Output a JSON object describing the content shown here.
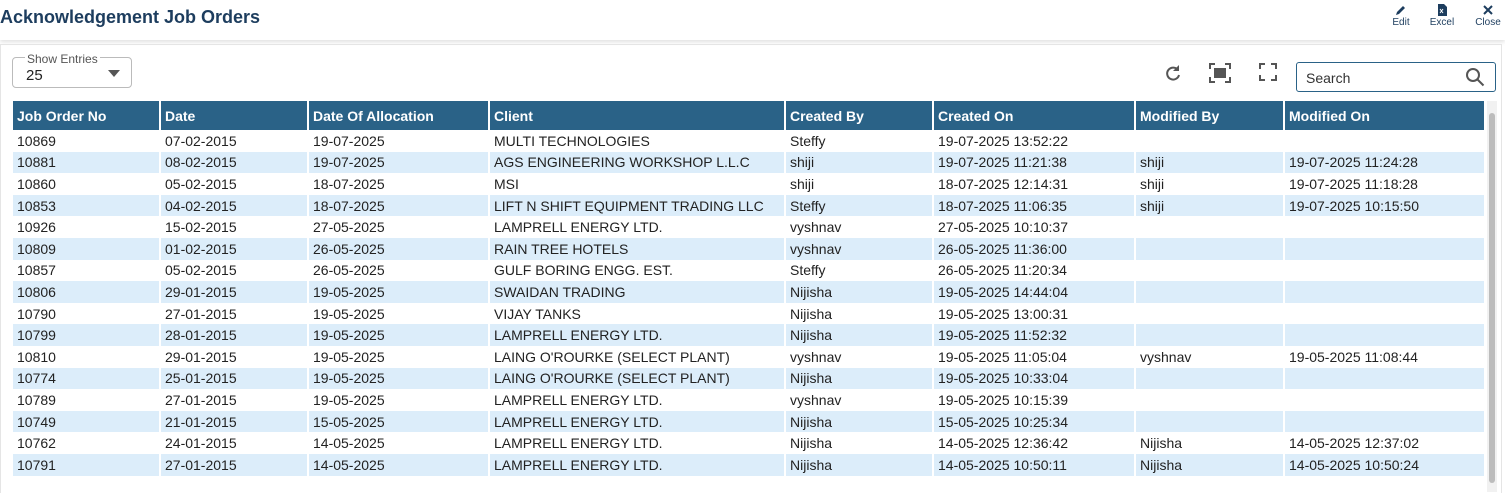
{
  "header": {
    "title": "Acknowledgement Job Orders",
    "actions": [
      "Edit",
      "Excel",
      "Close"
    ]
  },
  "controls": {
    "entries_label": "Show Entries",
    "entries_value": "25",
    "search_placeholder": "Search"
  },
  "table": {
    "columns": [
      "Job Order No",
      "Date",
      "Date Of Allocation",
      "Client",
      "Created By",
      "Created On",
      "Modified By",
      "Modified On"
    ],
    "rows": [
      [
        "10869",
        "07-02-2015",
        "19-07-2025",
        "MULTI TECHNOLOGIES",
        "Steffy",
        "19-07-2025 13:52:22",
        null,
        null
      ],
      [
        "10881",
        "08-02-2015",
        "19-07-2025",
        "AGS ENGINEERING WORKSHOP L.L.C",
        "shiji",
        "19-07-2025 11:21:38",
        "shiji",
        "19-07-2025 11:24:28"
      ],
      [
        "10860",
        "05-02-2015",
        "18-07-2025",
        "MSI",
        "shiji",
        "18-07-2025 12:14:31",
        "shiji",
        "19-07-2025 11:18:28"
      ],
      [
        "10853",
        "04-02-2015",
        "18-07-2025",
        "LIFT N SHIFT EQUIPMENT TRADING LLC",
        "Steffy",
        "18-07-2025 11:06:35",
        "shiji",
        "19-07-2025 10:15:50"
      ],
      [
        "10926",
        "15-02-2015",
        "27-05-2025",
        "LAMPRELL ENERGY LTD.",
        "vyshnav",
        "27-05-2025 10:10:37",
        null,
        null
      ],
      [
        "10809",
        "01-02-2015",
        "26-05-2025",
        "RAIN TREE HOTELS",
        "vyshnav",
        "26-05-2025 11:36:00",
        null,
        null
      ],
      [
        "10857",
        "05-02-2015",
        "26-05-2025",
        "GULF BORING ENGG. EST.",
        "Steffy",
        "26-05-2025 11:20:34",
        null,
        null
      ],
      [
        "10806",
        "29-01-2015",
        "19-05-2025",
        "SWAIDAN TRADING",
        "Nijisha",
        "19-05-2025 14:44:04",
        null,
        null
      ],
      [
        "10790",
        "27-01-2015",
        "19-05-2025",
        "VIJAY TANKS",
        "Nijisha",
        "19-05-2025 13:00:31",
        null,
        null
      ],
      [
        "10799",
        "28-01-2015",
        "19-05-2025",
        "LAMPRELL ENERGY LTD.",
        "Nijisha",
        "19-05-2025 11:52:32",
        null,
        null
      ],
      [
        "10810",
        "29-01-2015",
        "19-05-2025",
        "LAING O'ROURKE (SELECT PLANT)",
        "vyshnav",
        "19-05-2025 11:05:04",
        "vyshnav",
        "19-05-2025 11:08:44"
      ],
      [
        "10774",
        "25-01-2015",
        "19-05-2025",
        "LAING O'ROURKE (SELECT PLANT)",
        "Nijisha",
        "19-05-2025 10:33:04",
        null,
        null
      ],
      [
        "10789",
        "27-01-2015",
        "19-05-2025",
        "LAMPRELL ENERGY LTD.",
        "vyshnav",
        "19-05-2025 10:15:39",
        null,
        null
      ],
      [
        "10749",
        "21-01-2015",
        "15-05-2025",
        "LAMPRELL ENERGY LTD.",
        "Nijisha",
        "15-05-2025 10:25:34",
        null,
        null
      ],
      [
        "10762",
        "24-01-2015",
        "14-05-2025",
        "LAMPRELL ENERGY LTD.",
        "Nijisha",
        "14-05-2025 12:36:42",
        "Nijisha",
        "14-05-2025 12:37:02"
      ],
      [
        "10791",
        "27-01-2015",
        "14-05-2025",
        "LAMPRELL ENERGY LTD.",
        "Nijisha",
        "14-05-2025 10:50:11",
        "Nijisha",
        "14-05-2025 10:50:24"
      ]
    ]
  }
}
